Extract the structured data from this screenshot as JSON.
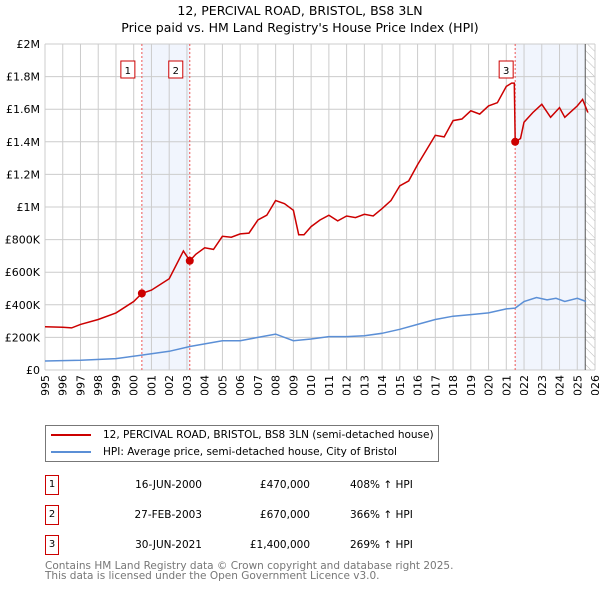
{
  "chart_data": {
    "type": "line",
    "title": "12, PERCIVAL ROAD, BRISTOL, BS8 3LN",
    "subtitle": "Price paid vs. HM Land Registry's House Price Index (HPI)",
    "xlim": [
      1995,
      2026
    ],
    "ylim": [
      0,
      2000000
    ],
    "x_ticks": [
      "1995",
      "1996",
      "1997",
      "1998",
      "1999",
      "2000",
      "2001",
      "2002",
      "2003",
      "2004",
      "2005",
      "2006",
      "2007",
      "2008",
      "2009",
      "2010",
      "2011",
      "2012",
      "2013",
      "2014",
      "2015",
      "2016",
      "2017",
      "2018",
      "2019",
      "2020",
      "2021",
      "2022",
      "2023",
      "2024",
      "2025",
      "2026"
    ],
    "y_ticks": [
      {
        "v": 0,
        "label": "£0"
      },
      {
        "v": 200000,
        "label": "£200K"
      },
      {
        "v": 400000,
        "label": "£400K"
      },
      {
        "v": 600000,
        "label": "£600K"
      },
      {
        "v": 800000,
        "label": "£800K"
      },
      {
        "v": 1000000,
        "label": "£1M"
      },
      {
        "v": 1200000,
        "label": "£1.2M"
      },
      {
        "v": 1400000,
        "label": "£1.4M"
      },
      {
        "v": 1600000,
        "label": "£1.6M"
      },
      {
        "v": 1800000,
        "label": "£1.8M"
      },
      {
        "v": 2000000,
        "label": "£2M"
      }
    ],
    "grid": true,
    "series": [
      {
        "name": "12, PERCIVAL ROAD, BRISTOL, BS8 3LN (semi-detached house)",
        "color": "#cc0000",
        "x": [
          1995,
          1996,
          1996.5,
          1997,
          1998,
          1999,
          2000,
          2000.46,
          2001,
          2002,
          2002.8,
          2003.16,
          2003.5,
          2004,
          2004.5,
          2005,
          2005.5,
          2006,
          2006.5,
          2007,
          2007.5,
          2008,
          2008.5,
          2009,
          2009.3,
          2009.6,
          2010,
          2010.5,
          2011,
          2011.5,
          2012,
          2012.5,
          2013,
          2013.5,
          2014,
          2014.5,
          2015,
          2015.5,
          2016,
          2016.5,
          2017,
          2017.5,
          2018,
          2018.5,
          2019,
          2019.5,
          2020,
          2020.5,
          2021,
          2021.3,
          2021.45,
          2021.5,
          2021.8,
          2022,
          2022.5,
          2023,
          2023.5,
          2024,
          2024.3,
          2024.7,
          2025,
          2025.3,
          2025.6
        ],
        "y": [
          265000,
          262000,
          258000,
          280000,
          310000,
          350000,
          420000,
          470000,
          490000,
          560000,
          730000,
          670000,
          710000,
          750000,
          740000,
          820000,
          815000,
          835000,
          840000,
          920000,
          950000,
          1040000,
          1020000,
          980000,
          830000,
          830000,
          880000,
          920000,
          950000,
          915000,
          945000,
          935000,
          955000,
          945000,
          990000,
          1040000,
          1130000,
          1160000,
          1260000,
          1350000,
          1440000,
          1430000,
          1530000,
          1540000,
          1590000,
          1570000,
          1620000,
          1640000,
          1740000,
          1760000,
          1760000,
          1400000,
          1420000,
          1520000,
          1580000,
          1630000,
          1550000,
          1610000,
          1550000,
          1590000,
          1620000,
          1660000,
          1580000
        ]
      },
      {
        "name": "HPI: Average price, semi-detached house, City of Bristol",
        "color": "#5b8fd6",
        "x": [
          1995,
          1997,
          1999,
          2000.5,
          2002,
          2003.2,
          2004,
          2005,
          2006,
          2007,
          2008,
          2009,
          2010,
          2011,
          2012,
          2013,
          2014,
          2015,
          2016,
          2017,
          2018,
          2019,
          2020,
          2021,
          2021.5,
          2022,
          2022.7,
          2023.3,
          2023.8,
          2024.3,
          2025,
          2025.5
        ],
        "y": [
          55000,
          60000,
          70000,
          92000,
          115000,
          145000,
          160000,
          180000,
          180000,
          200000,
          220000,
          180000,
          190000,
          205000,
          205000,
          210000,
          225000,
          250000,
          280000,
          310000,
          330000,
          340000,
          350000,
          375000,
          380000,
          420000,
          445000,
          430000,
          440000,
          420000,
          440000,
          420000
        ]
      }
    ],
    "sales": [
      {
        "n": "1",
        "x": 2000.46,
        "y": 470000,
        "date": "16-JUN-2000",
        "price": "£470,000",
        "hpi": "408% ↑ HPI"
      },
      {
        "n": "2",
        "x": 2003.16,
        "y": 670000,
        "date": "27-FEB-2003",
        "price": "£670,000",
        "hpi": "366% ↑ HPI"
      },
      {
        "n": "3",
        "x": 2021.5,
        "y": 1400000,
        "date": "30-JUN-2021",
        "price": "£1,400,000",
        "hpi": "269% ↑ HPI"
      }
    ],
    "data_end": 2025.45,
    "legend_placement": "below"
  },
  "footer": {
    "line1": "Contains HM Land Registry data © Crown copyright and database right 2025.",
    "line2": "This data is licensed under the Open Government Licence v3.0."
  }
}
